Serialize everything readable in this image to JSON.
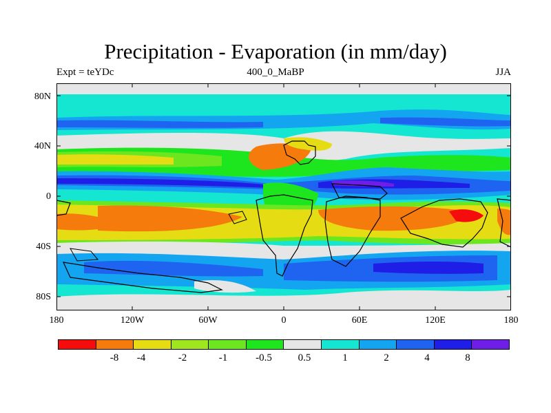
{
  "title": "Precipitation - Evaporation (in mm/day)",
  "experiment": "Expt = teYDc",
  "period": "400_0_MaBP",
  "season": "JJA",
  "y_ticks": [
    "80N",
    "40N",
    "0",
    "40S",
    "80S"
  ],
  "x_ticks": [
    "180",
    "120W",
    "60W",
    "0",
    "60E",
    "120E",
    "180"
  ],
  "colorbar": {
    "colors": [
      "#f50d0d",
      "#f57b0d",
      "#e6dc14",
      "#a0e61e",
      "#6ce61e",
      "#1ee61e",
      "#e6e6e6",
      "#14e6d2",
      "#14a5f0",
      "#1e64f0",
      "#1e1ee6",
      "#6e1ee6"
    ],
    "labels": [
      "-8",
      "-4",
      "-2",
      "-1",
      "-0.5",
      "0.5",
      "1",
      "2",
      "4",
      "8"
    ]
  }
}
